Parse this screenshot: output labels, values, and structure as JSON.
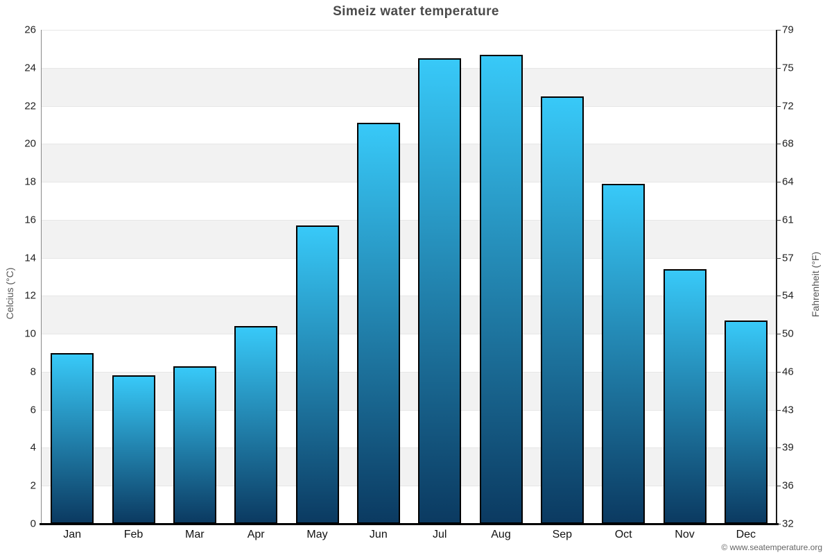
{
  "page": {
    "title": "Simeiz water temperature",
    "footer": "© www.seatemperature.org"
  },
  "chart_data": {
    "type": "bar",
    "title": "Simeiz water temperature",
    "categories": [
      "Jan",
      "Feb",
      "Mar",
      "Apr",
      "May",
      "Jun",
      "Jul",
      "Aug",
      "Sep",
      "Oct",
      "Nov",
      "Dec"
    ],
    "values": [
      9.0,
      7.8,
      8.3,
      10.4,
      15.7,
      21.1,
      24.5,
      24.7,
      22.5,
      17.9,
      13.4,
      10.7
    ],
    "xlabel": "",
    "ylabel_left": "Celcius (°C)",
    "ylabel_right": "Fahrenheit (°F)",
    "ylim_left": [
      0,
      26
    ],
    "yticks_left": [
      0,
      2,
      4,
      6,
      8,
      10,
      12,
      14,
      16,
      18,
      20,
      22,
      24,
      26
    ],
    "yticks_right_labels": [
      "32",
      "36",
      "39",
      "43",
      "46",
      "50",
      "54",
      "57",
      "61",
      "64",
      "68",
      "72",
      "75",
      "79"
    ],
    "legend": "none",
    "grid": "alternating horizontal gray bands every 2 degrees C, light gridlines at each tick",
    "colors": {
      "bar_top": "#38c9f8",
      "bar_bottom": "#0b3a61",
      "bar_border": "#000000",
      "band_gray": "#f2f2f2",
      "band_white": "#ffffff",
      "gridline": "#e6e6e6",
      "title_text": "#4a4a4a",
      "tick_text": "#222222",
      "axis_label_text": "#555555",
      "footer_text": "#666666"
    }
  }
}
